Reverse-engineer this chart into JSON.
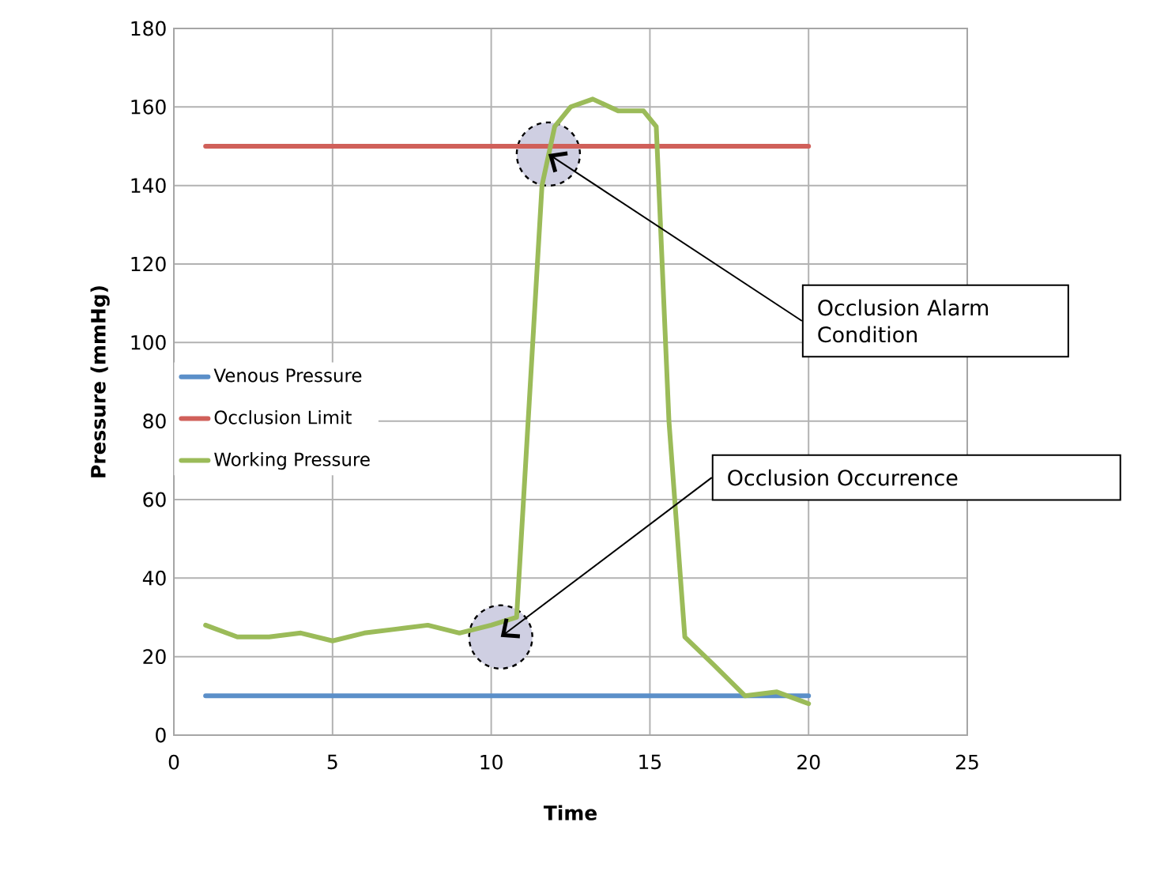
{
  "chart_data": {
    "type": "line",
    "xlabel": "Time",
    "ylabel": "Pressure (mmHg)",
    "xlim": [
      0,
      25
    ],
    "ylim": [
      0,
      180
    ],
    "xticks": [
      0,
      5,
      10,
      15,
      20,
      25
    ],
    "yticks": [
      0,
      20,
      40,
      60,
      80,
      100,
      120,
      140,
      160,
      180
    ],
    "grid": true,
    "legend": "left",
    "marker": "none",
    "line_style": "solid",
    "series": [
      {
        "name": "Venous Pressure",
        "color": "#5b8fc9",
        "x": [
          1,
          20
        ],
        "values": [
          10,
          10
        ]
      },
      {
        "name": "Occlusion Limit",
        "color": "#d0605a",
        "x": [
          1,
          20
        ],
        "values": [
          150,
          150
        ]
      },
      {
        "name": "Working Pressure",
        "color": "#9bbb59",
        "x": [
          1,
          2,
          3,
          4,
          5,
          6,
          7,
          8,
          9,
          10,
          10.8,
          11.6,
          12,
          12.5,
          13.2,
          14,
          14.8,
          15.2,
          15.6,
          16.1,
          17,
          18,
          19,
          20
        ],
        "values": [
          28,
          25,
          25,
          26,
          24,
          26,
          27,
          28,
          26,
          28,
          30,
          140,
          155,
          160,
          162,
          159,
          159,
          155,
          80,
          25,
          18,
          10,
          11,
          8
        ]
      }
    ],
    "annotations": [
      {
        "text": "Occlusion Alarm Condition",
        "x": 11.8,
        "y": 148
      },
      {
        "text": "Occlusion Occurrence",
        "x": 10.3,
        "y": 25
      }
    ]
  }
}
